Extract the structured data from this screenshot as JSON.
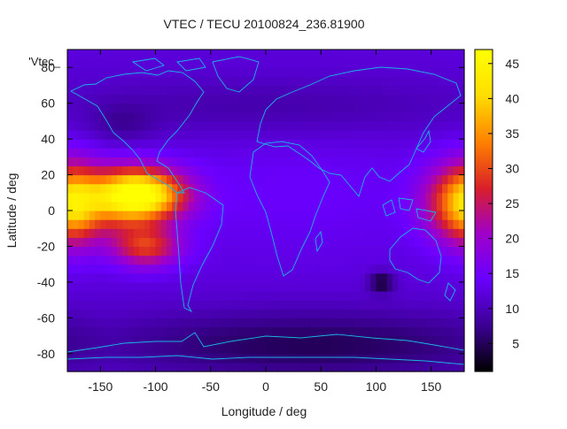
{
  "chart_data": {
    "type": "heatmap",
    "title": "VTEC / TECU 20100824_236.81900",
    "xlabel": "Longitude / deg",
    "ylabel": "Latitude / deg",
    "legend_key": "'Vtec_",
    "xlim": [
      -180,
      180
    ],
    "ylim": [
      -90,
      90
    ],
    "colorbar_range": [
      1,
      47
    ],
    "xticks": [
      {
        "value": -150,
        "label": "-150"
      },
      {
        "value": -100,
        "label": "-100"
      },
      {
        "value": -50,
        "label": "-50"
      },
      {
        "value": 0,
        "label": "0"
      },
      {
        "value": 50,
        "label": "50"
      },
      {
        "value": 100,
        "label": "100"
      },
      {
        "value": 150,
        "label": "150"
      }
    ],
    "yticks": [
      {
        "value": -80,
        "label": "-80"
      },
      {
        "value": -60,
        "label": "-60"
      },
      {
        "value": -40,
        "label": "-40"
      },
      {
        "value": -20,
        "label": "-20"
      },
      {
        "value": 0,
        "label": "0"
      },
      {
        "value": 20,
        "label": "20"
      },
      {
        "value": 40,
        "label": "40"
      },
      {
        "value": 60,
        "label": "60"
      },
      {
        "value": 80,
        "label": "80"
      }
    ],
    "colorbar_ticks": [
      {
        "value": 5,
        "label": "5"
      },
      {
        "value": 10,
        "label": "10"
      },
      {
        "value": 15,
        "label": "15"
      },
      {
        "value": 20,
        "label": "20"
      },
      {
        "value": 25,
        "label": "25"
      },
      {
        "value": 30,
        "label": "30"
      },
      {
        "value": 35,
        "label": "35"
      },
      {
        "value": 40,
        "label": "40"
      },
      {
        "value": 45,
        "label": "45"
      }
    ],
    "background_vtec": 12,
    "features": [
      {
        "lon": -112,
        "lat": 9,
        "sigma_lon": 28,
        "sigma_lat": 10,
        "amp": 33
      },
      {
        "lon": -108,
        "lat": -20,
        "sigma_lon": 22,
        "sigma_lat": 8,
        "amp": 16
      },
      {
        "lon": -140,
        "lat": 5,
        "sigma_lon": 25,
        "sigma_lat": 14,
        "amp": 10
      },
      {
        "lon": -172,
        "lat": 3,
        "sigma_lon": 16,
        "sigma_lat": 16,
        "amp": 12
      },
      {
        "lon": 172,
        "lat": 5,
        "sigma_lon": 22,
        "sigma_lat": 15,
        "amp": 17
      },
      {
        "lon": 30,
        "lat": 10,
        "sigma_lon": 100,
        "sigma_lat": 25,
        "amp": 2
      },
      {
        "lon": 0,
        "lat": 58,
        "sigma_lon": 150,
        "sigma_lat": 12,
        "amp": -3
      },
      {
        "lon": 40,
        "lat": -75,
        "sigma_lon": 140,
        "sigma_lat": 14,
        "amp": -7
      },
      {
        "lon": 105,
        "lat": -40,
        "sigma_lon": 8,
        "sigma_lat": 4,
        "amp": -9
      },
      {
        "lon": -130,
        "lat": 48,
        "sigma_lon": 20,
        "sigma_lat": 8,
        "amp": -3
      }
    ],
    "coastline_color": "#19b5e6",
    "colormap": [
      "#000000",
      "#3a0090",
      "#6a00ff",
      "#a000c8",
      "#d9202a",
      "#ff7f00",
      "#ffdf00",
      "#ffff00"
    ]
  }
}
